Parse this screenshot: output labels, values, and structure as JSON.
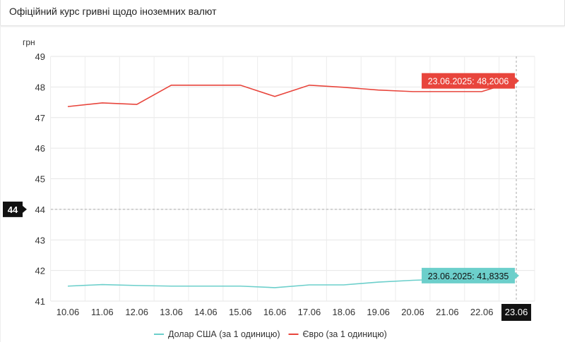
{
  "header": {
    "title": "Офіційний курс гривні щодо іноземних валют"
  },
  "chart_data": {
    "type": "line",
    "ylabel": "грн",
    "ylim": [
      41,
      49
    ],
    "yticks": [
      41,
      42,
      43,
      44,
      45,
      46,
      47,
      48,
      49
    ],
    "categories": [
      "10.06",
      "11.06",
      "12.06",
      "13.06",
      "14.06",
      "15.06",
      "16.06",
      "17.06",
      "18.06",
      "19.06",
      "20.06",
      "21.06",
      "22.06",
      "23.06"
    ],
    "grid": true,
    "legend_position": "bottom",
    "series": [
      {
        "name": "Долар США (за 1 одиницю)",
        "color": "#6ccfcb",
        "values": [
          41.49,
          41.54,
          41.51,
          41.49,
          41.49,
          41.49,
          41.44,
          41.53,
          41.53,
          41.62,
          41.68,
          41.72,
          41.78,
          41.8335
        ]
      },
      {
        "name": "Євро (за 1 одиницю)",
        "color": "#e8453c",
        "values": [
          47.36,
          47.48,
          47.43,
          48.06,
          48.06,
          48.06,
          47.69,
          48.06,
          47.99,
          47.9,
          47.85,
          47.85,
          47.85,
          48.2006
        ]
      }
    ],
    "tooltips": [
      "23.06.2025: 41,8335",
      "23.06.2025: 48,2006"
    ],
    "crosshair": {
      "x_label": "23.06",
      "y_label": "44"
    }
  }
}
